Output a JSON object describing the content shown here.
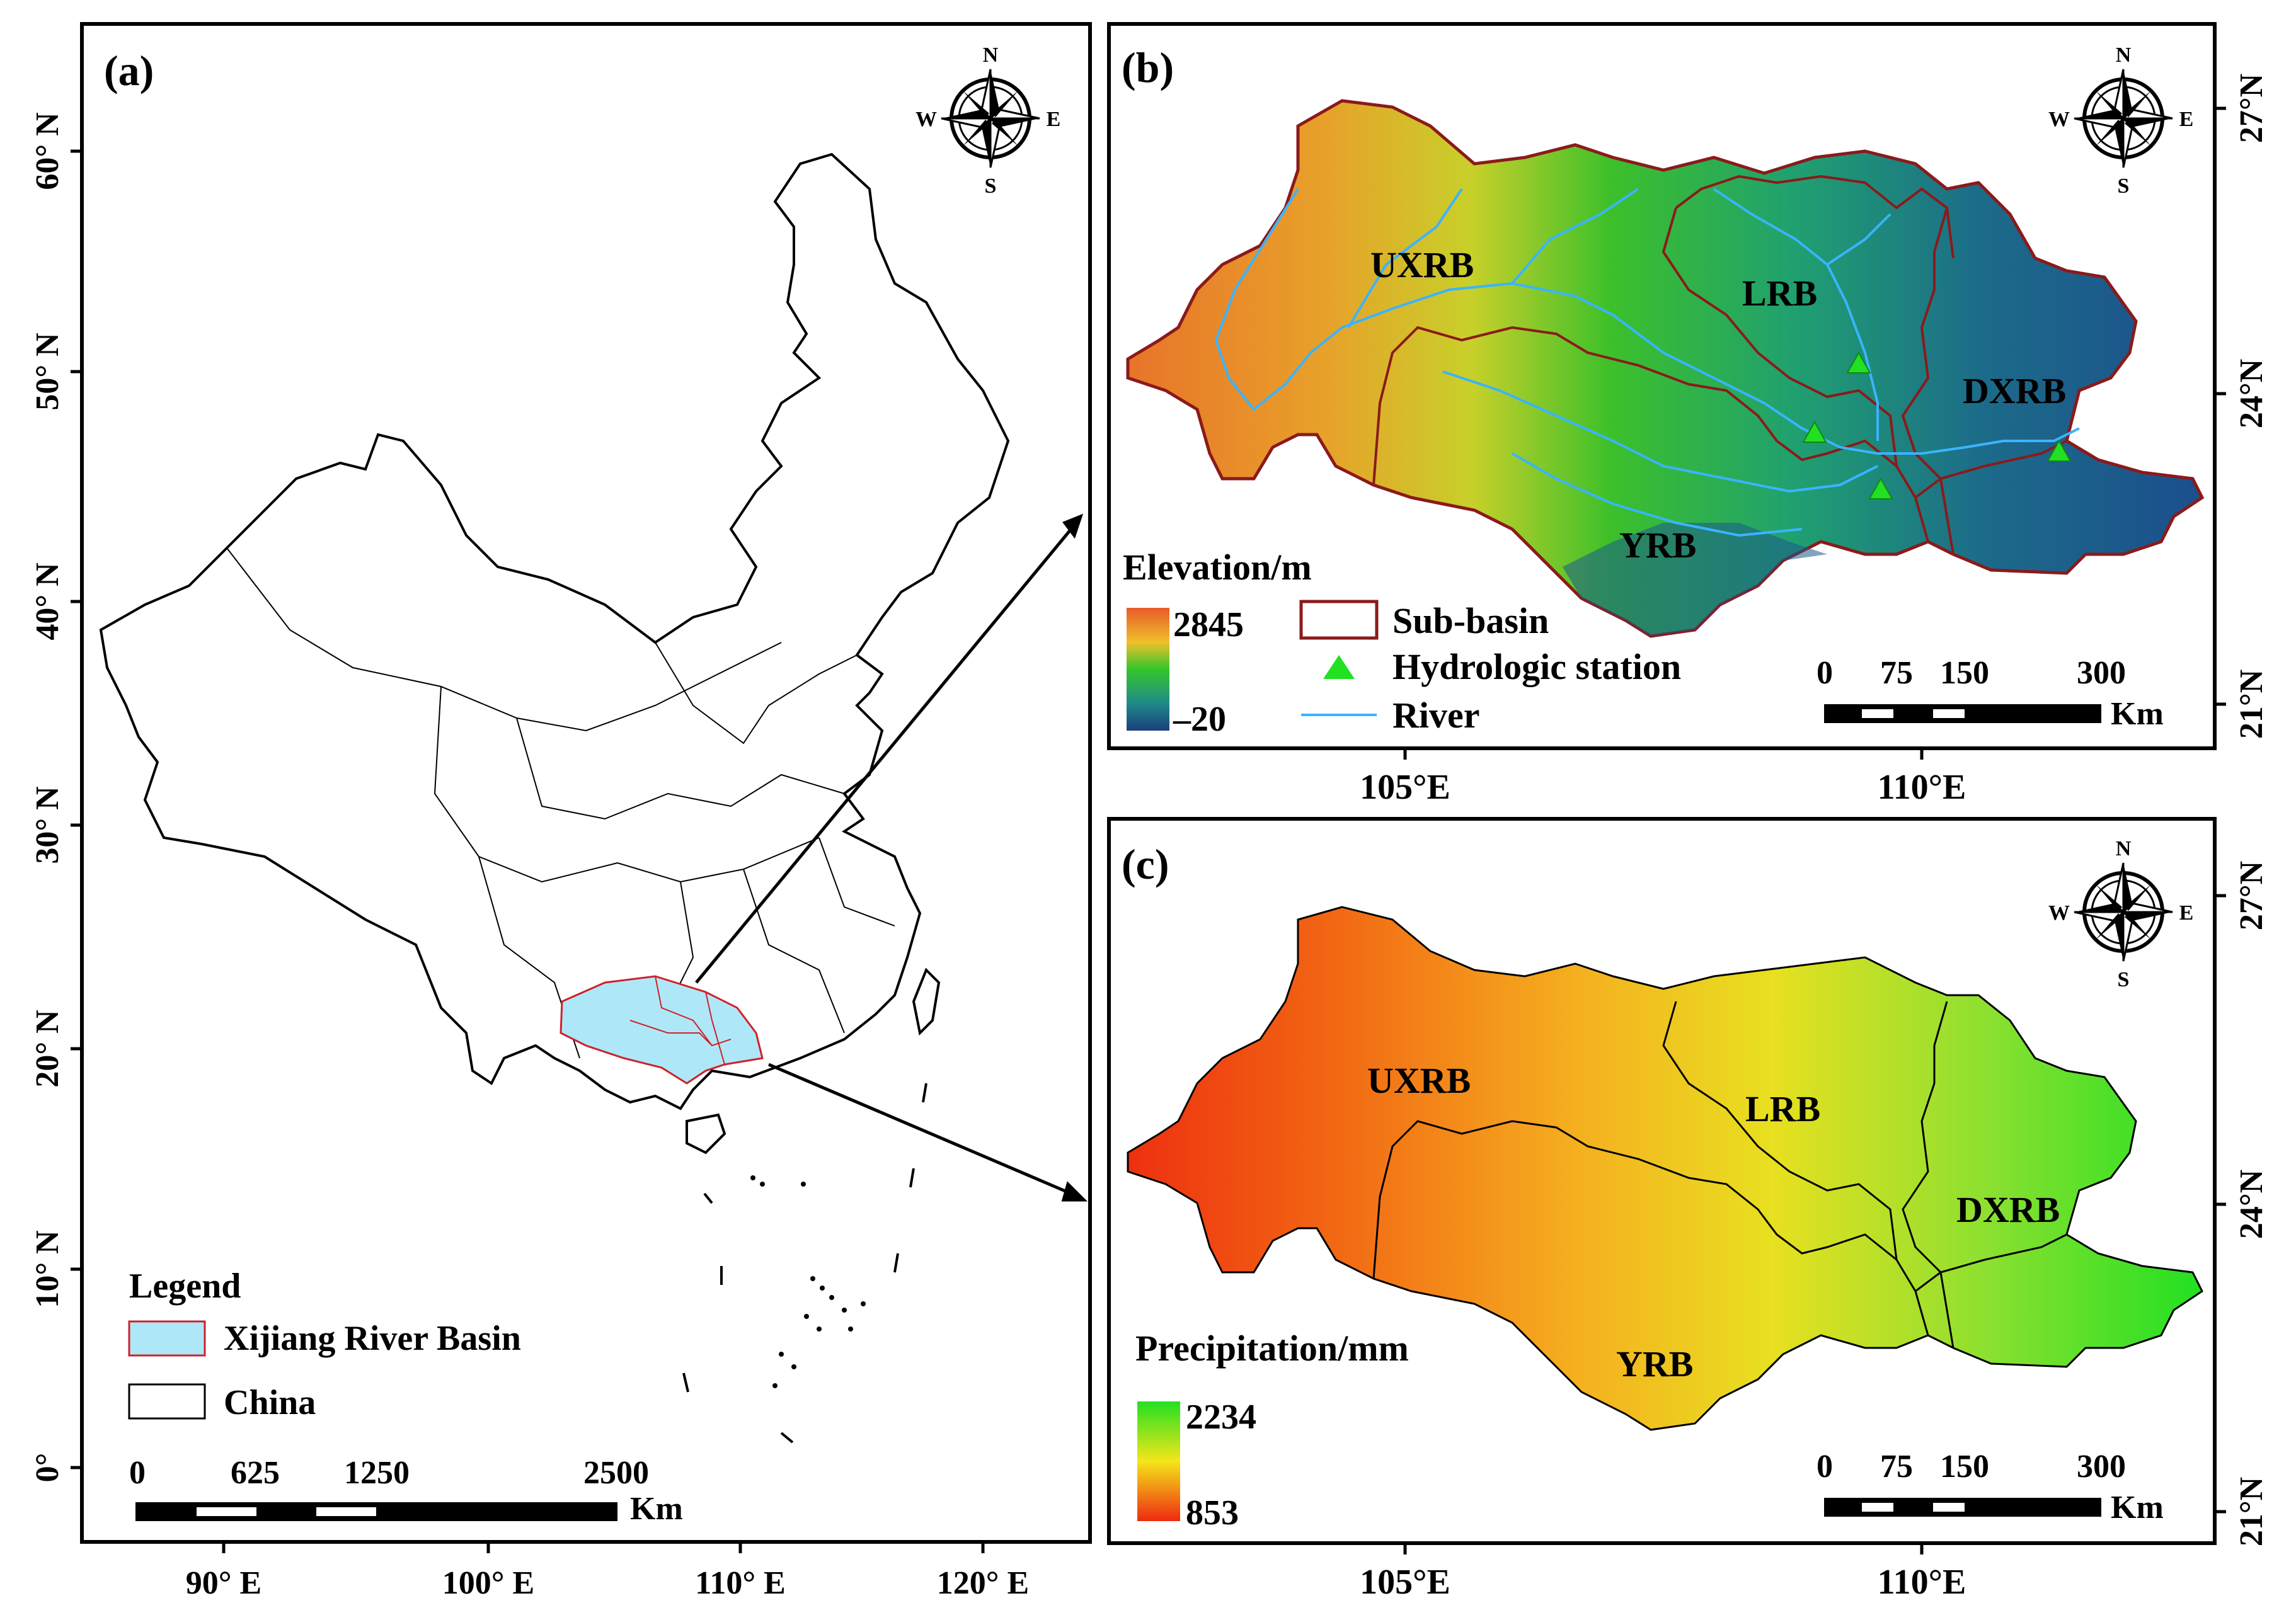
{
  "panel_a": {
    "label": "(a)",
    "lat_labels": [
      "60° N",
      "50° N",
      "40° N",
      "30° N",
      "20° N",
      "10° N",
      "0°"
    ],
    "lon_labels": [
      "90° E",
      "100° E",
      "110° E",
      "120° E"
    ],
    "legend": {
      "title": "Legend",
      "items": [
        {
          "label": "Xijiang River Basin",
          "fill": "#aee8f8",
          "stroke": "#d0202a"
        },
        {
          "label": "China",
          "fill": "#ffffff",
          "stroke": "#000000"
        }
      ]
    },
    "scale": {
      "ticks": [
        "0",
        "625",
        "1250",
        "2500"
      ],
      "unit": "Km"
    }
  },
  "panel_b": {
    "label": "(b)",
    "lat_labels": [
      "27°N",
      "24°N",
      "21°N"
    ],
    "lon_labels": [
      "105°E",
      "110°E"
    ],
    "subbasins": [
      "UXRB",
      "LRB",
      "DXRB",
      "YRB"
    ],
    "colorbar": {
      "title": "Elevation/m",
      "max": "2845",
      "min": "–20"
    },
    "legend": [
      {
        "label": "Sub-basin",
        "stroke": "#8b1a1a"
      },
      {
        "label": "Hydrologic station",
        "color": "#22e022"
      },
      {
        "label": "River",
        "color": "#3ab4ff"
      }
    ],
    "scale": {
      "ticks": [
        "0",
        "75",
        "150",
        "300"
      ],
      "unit": "Km"
    }
  },
  "panel_c": {
    "label": "(c)",
    "lat_labels": [
      "27°N",
      "24°N",
      "21°N"
    ],
    "lon_labels": [
      "105°E",
      "110°E"
    ],
    "subbasins": [
      "UXRB",
      "LRB",
      "DXRB",
      "YRB"
    ],
    "colorbar": {
      "title": "Precipitation/mm",
      "max": "2234",
      "min": "853"
    },
    "scale": {
      "ticks": [
        "0",
        "75",
        "150",
        "300"
      ],
      "unit": "Km"
    }
  },
  "compass": {
    "n": "N",
    "s": "S",
    "e": "E",
    "w": "W"
  },
  "colors": {
    "elev_high": "#e85a2a",
    "elev_mid": "#34c62a",
    "elev_low": "#1b4f8c",
    "precip_high": "#22e022",
    "precip_mid": "#f5e61a",
    "precip_low": "#ee2a10",
    "river": "#3ab4ff",
    "subbasin": "#8b1a1a",
    "basin_fill": "#aee8f8"
  }
}
